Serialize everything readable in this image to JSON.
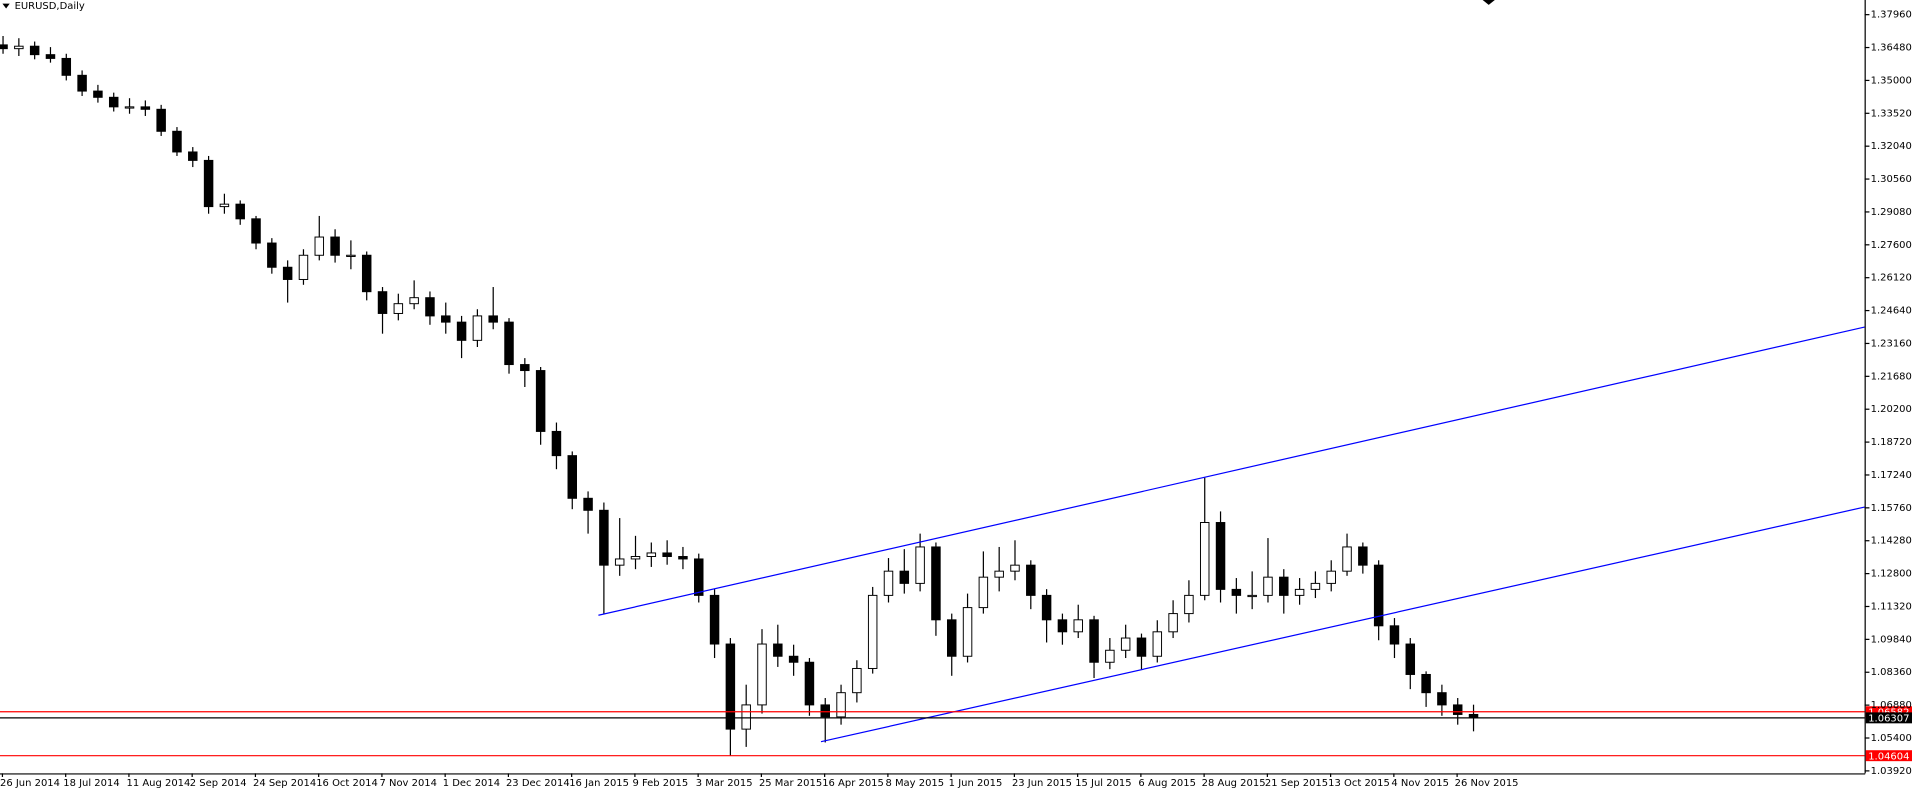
{
  "chart_data": {
    "type": "candlestick",
    "title": "EURUSD,Daily",
    "up_color": "#ffffff",
    "down_color": "#000000",
    "wick_color": "#000000",
    "categories": [
      "26 Jun 2014",
      null,
      null,
      null,
      "18 Jul 2014",
      null,
      null,
      null,
      "11 Aug 2014",
      null,
      null,
      null,
      "2 Sep 2014",
      null,
      null,
      null,
      "24 Sep 2014",
      null,
      null,
      null,
      "16 Oct 2014",
      null,
      null,
      null,
      "7 Nov 2014",
      null,
      null,
      null,
      "1 Dec 2014",
      null,
      null,
      null,
      "23 Dec 2014",
      null,
      null,
      null,
      "16 Jan 2015",
      null,
      null,
      null,
      "9 Feb 2015",
      null,
      null,
      null,
      "3 Mar 2015",
      null,
      null,
      null,
      "25 Mar 2015",
      null,
      null,
      null,
      "16 Apr 2015",
      null,
      null,
      null,
      "8 May 2015",
      null,
      null,
      null,
      "1 Jun 2015",
      null,
      null,
      null,
      "23 Jun 2015",
      null,
      null,
      null,
      "15 Jul 2015",
      null,
      null,
      null,
      "6 Aug 2015",
      null,
      null,
      null,
      "28 Aug 2015",
      null,
      null,
      null,
      "21 Sep 2015",
      null,
      null,
      null,
      "13 Oct 2015",
      null,
      null,
      null,
      "4 Nov 2015",
      null,
      null,
      null,
      "26 Nov 2015",
      null
    ],
    "open": [
      1.366,
      1.3643,
      1.3654,
      1.3616,
      1.3599,
      1.3523,
      1.3452,
      1.3424,
      1.3381,
      1.3381,
      1.337,
      1.3271,
      1.3178,
      1.314,
      1.2932,
      1.2943,
      1.2877,
      1.2768,
      1.2659,
      1.2604,
      1.2713,
      1.2795,
      1.2713,
      1.2713,
      1.2549,
      1.2451,
      1.2495,
      1.2522,
      1.244,
      1.2412,
      1.233,
      1.244,
      1.2412,
      1.2221,
      1.2194,
      1.192,
      1.1811,
      1.1619,
      1.1565,
      1.1318,
      1.1346,
      1.1357,
      1.1373,
      1.1357,
      1.1346,
      1.1182,
      1.0963,
      1.058,
      1.0689,
      1.0963,
      1.0908,
      1.0881,
      1.0689,
      1.0635,
      1.0744,
      1.0853,
      1.1182,
      1.1291,
      1.1236,
      1.14,
      1.1072,
      1.0908,
      1.1127,
      1.1264,
      1.1291,
      1.1318,
      1.1182,
      1.1072,
      1.1018,
      1.1072,
      1.0881,
      1.0935,
      1.099,
      1.0908,
      1.1018,
      1.11,
      1.1182,
      1.151,
      1.1209,
      1.1182,
      1.1182,
      1.1264,
      1.1182,
      1.1209,
      1.1236,
      1.1291,
      1.14,
      1.1318,
      1.1045,
      1.0963,
      1.0826,
      1.0744,
      1.0689,
      1.0646
    ],
    "high": [
      1.37,
      1.369,
      1.3675,
      1.365,
      1.362,
      1.3545,
      1.348,
      1.3445,
      1.342,
      1.341,
      1.339,
      1.329,
      1.32,
      1.316,
      1.299,
      1.296,
      1.289,
      1.279,
      1.269,
      1.274,
      1.289,
      1.283,
      1.278,
      1.273,
      1.257,
      1.254,
      1.26,
      1.255,
      1.25,
      1.244,
      1.247,
      1.257,
      1.243,
      1.225,
      1.221,
      1.196,
      1.183,
      1.165,
      1.16,
      1.153,
      1.145,
      1.142,
      1.143,
      1.14,
      1.137,
      1.121,
      1.099,
      1.078,
      1.103,
      1.105,
      1.096,
      1.09,
      1.072,
      1.078,
      1.089,
      1.122,
      1.135,
      1.139,
      1.146,
      1.142,
      1.11,
      1.119,
      1.138,
      1.14,
      1.143,
      1.134,
      1.121,
      1.11,
      1.114,
      1.109,
      1.099,
      1.105,
      1.101,
      1.107,
      1.116,
      1.125,
      1.1712,
      1.156,
      1.126,
      1.129,
      1.144,
      1.13,
      1.126,
      1.129,
      1.134,
      1.146,
      1.142,
      1.134,
      1.108,
      1.099,
      1.084,
      1.078,
      1.072,
      1.069
    ],
    "low": [
      1.362,
      1.361,
      1.3595,
      1.358,
      1.35,
      1.343,
      1.34,
      1.336,
      1.335,
      1.334,
      1.325,
      1.316,
      1.311,
      1.29,
      1.29,
      1.285,
      1.274,
      1.263,
      1.25,
      1.258,
      1.269,
      1.268,
      1.265,
      1.251,
      1.236,
      1.242,
      1.247,
      1.24,
      1.236,
      1.225,
      1.23,
      1.238,
      1.218,
      1.212,
      1.186,
      1.175,
      1.157,
      1.146,
      1.11,
      1.127,
      1.13,
      1.131,
      1.132,
      1.13,
      1.115,
      1.09,
      1.046,
      1.05,
      1.065,
      1.086,
      1.082,
      1.064,
      1.052,
      1.06,
      1.07,
      1.083,
      1.115,
      1.119,
      1.12,
      1.1,
      1.082,
      1.088,
      1.11,
      1.12,
      1.125,
      1.112,
      1.097,
      1.096,
      1.099,
      1.081,
      1.085,
      1.09,
      1.085,
      1.088,
      1.099,
      1.106,
      1.116,
      1.115,
      1.11,
      1.112,
      1.115,
      1.11,
      1.114,
      1.117,
      1.12,
      1.127,
      1.128,
      1.098,
      1.09,
      1.076,
      1.068,
      1.064,
      1.06,
      1.057
    ],
    "close": [
      1.3643,
      1.3654,
      1.3616,
      1.3599,
      1.3523,
      1.3452,
      1.3424,
      1.3381,
      1.3381,
      1.337,
      1.3271,
      1.3178,
      1.314,
      1.2932,
      1.2943,
      1.2877,
      1.2768,
      1.2659,
      1.2604,
      1.2713,
      1.2795,
      1.2713,
      1.2713,
      1.2549,
      1.2451,
      1.2495,
      1.2522,
      1.244,
      1.2412,
      1.233,
      1.244,
      1.2412,
      1.2221,
      1.2194,
      1.192,
      1.1811,
      1.1619,
      1.1565,
      1.1318,
      1.1346,
      1.1357,
      1.1373,
      1.1357,
      1.1346,
      1.1182,
      1.0963,
      1.058,
      1.0689,
      1.0963,
      1.0908,
      1.0881,
      1.0689,
      1.0635,
      1.0744,
      1.0853,
      1.1182,
      1.1291,
      1.1236,
      1.14,
      1.1072,
      1.0908,
      1.1127,
      1.1264,
      1.1291,
      1.1318,
      1.1182,
      1.1072,
      1.1018,
      1.1072,
      1.0881,
      1.0935,
      1.099,
      1.0908,
      1.1018,
      1.11,
      1.1182,
      1.151,
      1.1209,
      1.1182,
      1.1182,
      1.1264,
      1.1182,
      1.1209,
      1.1236,
      1.1291,
      1.14,
      1.1318,
      1.1045,
      1.0963,
      1.0826,
      1.0744,
      1.0689,
      1.0646,
      1.0631
    ],
    "ylim": [
      1.0381,
      1.3862
    ],
    "yticks": [
      {
        "value": 1.3796,
        "label": "1.37960"
      },
      {
        "value": 1.3648,
        "label": "1.36480"
      },
      {
        "value": 1.35,
        "label": "1.35000"
      },
      {
        "value": 1.3352,
        "label": "1.33520"
      },
      {
        "value": 1.3204,
        "label": "1.32040"
      },
      {
        "value": 1.3056,
        "label": "1.30560"
      },
      {
        "value": 1.2908,
        "label": "1.29080"
      },
      {
        "value": 1.276,
        "label": "1.27600"
      },
      {
        "value": 1.2612,
        "label": "1.26120"
      },
      {
        "value": 1.2464,
        "label": "1.24640"
      },
      {
        "value": 1.2316,
        "label": "1.23160"
      },
      {
        "value": 1.2168,
        "label": "1.21680"
      },
      {
        "value": 1.202,
        "label": "1.20200"
      },
      {
        "value": 1.1872,
        "label": "1.18720"
      },
      {
        "value": 1.1724,
        "label": "1.17240"
      },
      {
        "value": 1.1576,
        "label": "1.15760"
      },
      {
        "value": 1.1428,
        "label": "1.14280"
      },
      {
        "value": 1.128,
        "label": "1.12800"
      },
      {
        "value": 1.1132,
        "label": "1.11320"
      },
      {
        "value": 1.0984,
        "label": "1.09840"
      },
      {
        "value": 1.0836,
        "label": "1.08360"
      },
      {
        "value": 1.0688,
        "label": "1.06880"
      },
      {
        "value": 1.054,
        "label": "1.05400"
      },
      {
        "value": 1.0392,
        "label": "1.03920"
      }
    ],
    "levels": [
      {
        "value": 1.06582,
        "color": "#ff0000"
      },
      {
        "value": 1.04604,
        "color": "#ff0000"
      },
      {
        "value": 1.06307,
        "color": "#000000"
      }
    ],
    "grid": false
  }
}
